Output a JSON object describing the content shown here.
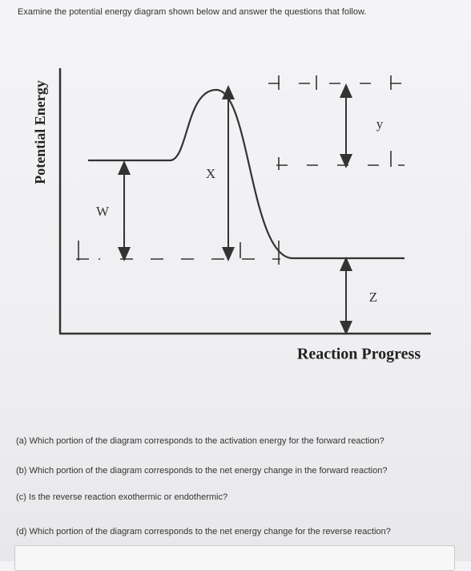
{
  "instruction": "Examine the potential energy diagram shown below and answer the questions that follow.",
  "diagram": {
    "y_axis_label": "Potential Energy",
    "x_axis_label": "Reaction Progress",
    "labels": {
      "w": "W",
      "x": "X",
      "y": "y",
      "z": "Z"
    }
  },
  "questions": [
    "(a) Which portion of the diagram corresponds to the activation energy for the forward reaction?",
    "(b) Which portion of the diagram corresponds to the net energy change in the forward reaction?",
    "(c) Is the reverse reaction exothermic or endothermic?",
    "(d) Which portion of the diagram corresponds to the net energy change for the reverse reaction?"
  ]
}
